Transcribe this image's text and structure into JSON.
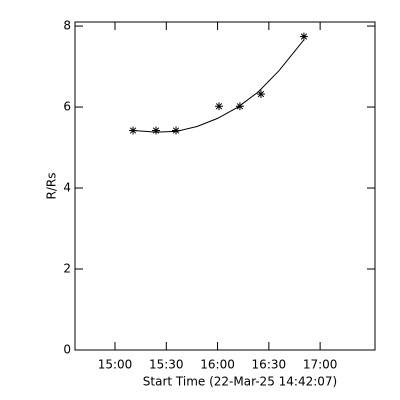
{
  "chart_data": {
    "type": "scatter",
    "x_label": "Start Time (22-Mar-25 14:42:07)",
    "y_label": "R/Rs",
    "x": [
      15.176,
      15.4,
      15.595,
      16.014,
      16.218,
      16.423,
      16.842
    ],
    "values": [
      5.42,
      5.42,
      5.42,
      6.02,
      6.02,
      6.32,
      7.74
    ],
    "color": "#000000",
    "fit": {
      "x": [
        15.176,
        15.4,
        15.6,
        15.8,
        16.0,
        16.2,
        16.4,
        16.6,
        16.842
      ],
      "values": [
        5.42,
        5.38,
        5.4,
        5.52,
        5.72,
        6.0,
        6.38,
        6.9,
        7.66
      ]
    },
    "xlim": [
      14.61,
      17.535
    ],
    "xticks": [
      {
        "value": 15,
        "label": "15:00"
      },
      {
        "value": 15.5,
        "label": "15:30"
      },
      {
        "value": 16,
        "label": "16:00"
      },
      {
        "value": 16.5,
        "label": "16:30"
      },
      {
        "value": 17,
        "label": "17:00"
      }
    ],
    "ylim": [
      0,
      8.1
    ],
    "yticks": [
      0,
      2,
      4,
      6,
      8
    ]
  }
}
